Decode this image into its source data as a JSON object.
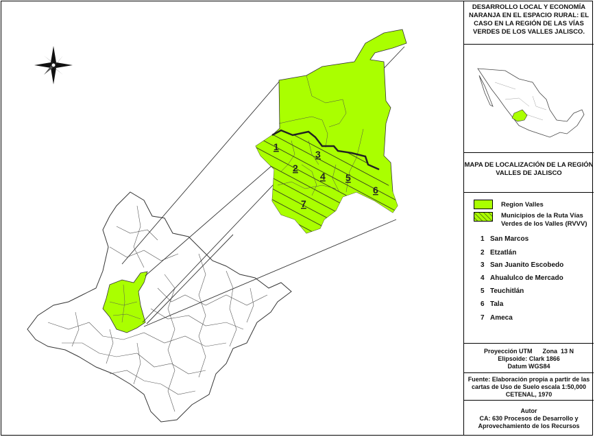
{
  "title": "DESARROLLO LOCAL Y ECONOMÍA NARANJA EN EL ESPACIO RURAL: EL CASO EN LA REGIÓN DE LAS VÍAS VERDES DE LOS VALLES JALISCO.",
  "map_title": "MAPA DE LOCALIZACIÓN  DE LA REGIÓN VALLES  DE JALISCO",
  "colors": {
    "region": "#aaff00",
    "outline": "#333333",
    "river": "#222222"
  },
  "legend": [
    {
      "label": "Region Valles",
      "style": "solid"
    },
    {
      "label": "Municipios de la Ruta Vías Verdes de los Valles (RVVV)",
      "style": "hatched"
    }
  ],
  "municipalities": [
    {
      "num": "1",
      "name": "San Marcos"
    },
    {
      "num": "2",
      "name": "Etzatlán"
    },
    {
      "num": "3",
      "name": "San Juanito Escobedo"
    },
    {
      "num": "4",
      "name": "Ahualulco de Mercado"
    },
    {
      "num": "5",
      "name": "Teuchitlán"
    },
    {
      "num": "6",
      "name": "Tala"
    },
    {
      "num": "7",
      "name": "Ameca"
    }
  ],
  "projection": {
    "line1": "Proyección UTM      Zona  13 N",
    "line2": "Elipsoide: Clark  1866",
    "line3": "Datum WGS84"
  },
  "source": "Fuente: Elaboración propia a partir de las cartas de Uso de Suelo escala 1:50,000 CETENAL, 1970",
  "author": {
    "heading": "Autor",
    "text": "CA: 630 Procesos de Desarrollo y Aprovechamiento de los Recursos"
  },
  "icons": {
    "compass": "compass-rose-icon"
  }
}
